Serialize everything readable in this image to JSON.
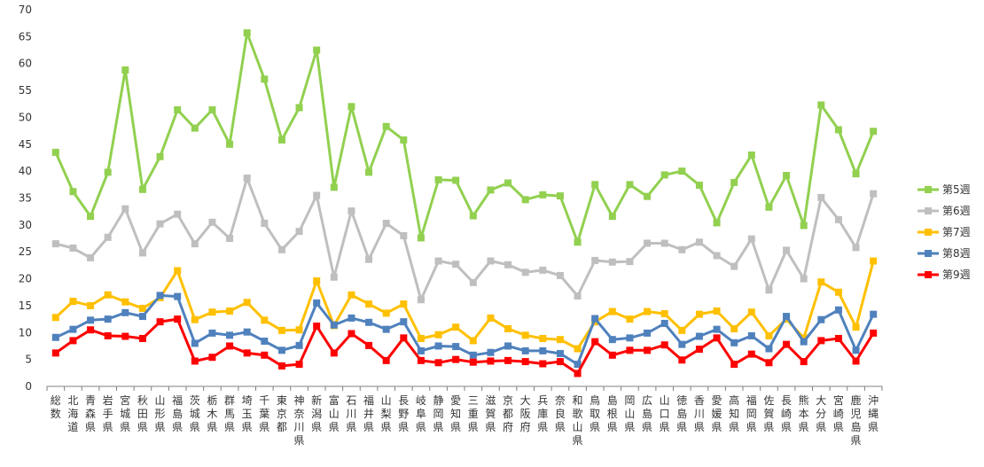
{
  "chart_data": {
    "type": "line",
    "ylim": [
      0,
      70
    ],
    "ytick_step": 5,
    "grid": false,
    "legend_placement": "right",
    "categories": [
      "総数",
      "北海道",
      "青森県",
      "岩手県",
      "宮城県",
      "秋田県",
      "山形県",
      "福島県",
      "茨城県",
      "栃木県",
      "群馬県",
      "埼玉県",
      "千葉県",
      "東京都",
      "神奈川県",
      "新潟県",
      "富山県",
      "石川県",
      "福井県",
      "山梨県",
      "長野県",
      "岐阜県",
      "静岡県",
      "愛知県",
      "三重県",
      "滋賀県",
      "京都府",
      "大阪府",
      "兵庫県",
      "奈良県",
      "和歌山県",
      "鳥取県",
      "島根県",
      "岡山県",
      "広島県",
      "山口県",
      "徳島県",
      "香川県",
      "愛媛県",
      "高知県",
      "福岡県",
      "佐賀県",
      "長崎県",
      "熊本県",
      "大分県",
      "宮崎県",
      "鹿児島県",
      "沖縄県"
    ],
    "series": [
      {
        "name": "第5週",
        "color": "#92d050",
        "marker": "square",
        "values": [
          43.5,
          36.2,
          31.6,
          39.8,
          58.8,
          36.6,
          42.7,
          51.4,
          48,
          51.4,
          45,
          65.7,
          57.1,
          45.8,
          51.8,
          62.5,
          37,
          52,
          39.8,
          48.3,
          45.8,
          27.6,
          38.4,
          38.3,
          31.7,
          36.5,
          37.8,
          34.7,
          35.6,
          35.4,
          26.8,
          37.5,
          31.6,
          37.5,
          35.3,
          39.3,
          40,
          37.4,
          30.4,
          37.9,
          43,
          33.3,
          39.2,
          29.9,
          52.3,
          47.7,
          39.5,
          47.4
        ]
      },
      {
        "name": "第6週",
        "color": "#bfbfbf",
        "marker": "square",
        "values": [
          26.5,
          25.7,
          23.9,
          27.7,
          33,
          24.8,
          30.2,
          32,
          26.5,
          30.5,
          27.5,
          38.7,
          30.3,
          25.4,
          28.8,
          35.5,
          20.3,
          32.6,
          23.6,
          30.3,
          28,
          16.1,
          23.3,
          22.7,
          19.3,
          23.3,
          22.6,
          21.2,
          21.6,
          20.6,
          16.8,
          23.4,
          23.1,
          23.2,
          26.6,
          26.6,
          25.4,
          26.8,
          24.3,
          22.3,
          27.4,
          17.9,
          25.3,
          20,
          35.1,
          31,
          25.8,
          35.8
        ]
      },
      {
        "name": "第7週",
        "color": "#ffc000",
        "marker": "square",
        "values": [
          12.8,
          15.8,
          15,
          17,
          15.7,
          14.5,
          16.5,
          21.5,
          12.4,
          13.8,
          14,
          15.6,
          12.3,
          10.4,
          10.5,
          19.6,
          11.3,
          17,
          15.3,
          13.6,
          15.3,
          8.9,
          9.6,
          11,
          8.5,
          12.7,
          10.7,
          9.5,
          8.9,
          8.7,
          7,
          12,
          13.9,
          12.5,
          13.9,
          13.5,
          10.4,
          13.4,
          14,
          10.7,
          13.8,
          9.4,
          12.5,
          9,
          19.4,
          17.5,
          11,
          23.3
        ]
      },
      {
        "name": "第8週",
        "color": "#4f81bd",
        "marker": "square",
        "values": [
          9.1,
          10.6,
          12.3,
          12.5,
          13.7,
          13,
          16.9,
          16.7,
          8,
          9.9,
          9.5,
          10.1,
          8.4,
          6.7,
          7.6,
          15.5,
          11.4,
          12.7,
          11.9,
          10.6,
          12,
          6.6,
          7.5,
          7.4,
          5.8,
          6.3,
          7.5,
          6.6,
          6.6,
          6.1,
          4.1,
          12.6,
          8.7,
          9,
          9.9,
          11.7,
          7.8,
          9.3,
          10.6,
          8.1,
          9.4,
          7,
          13,
          8.3,
          12.4,
          14.2,
          6.7,
          13.4
        ]
      },
      {
        "name": "第9週",
        "color": "#ff0000",
        "marker": "square",
        "values": [
          6.2,
          8.5,
          10.5,
          9.4,
          9.3,
          8.9,
          12,
          12.5,
          4.7,
          5.4,
          7.5,
          6.2,
          5.8,
          3.8,
          4.1,
          11.2,
          6.2,
          9.8,
          7.6,
          4.8,
          9,
          4.8,
          4.4,
          5,
          4.5,
          4.7,
          4.8,
          4.6,
          4.2,
          4.6,
          2.4,
          8.3,
          5.8,
          6.7,
          6.7,
          7.7,
          4.9,
          6.9,
          9,
          4.1,
          6,
          4.4,
          7.8,
          4.6,
          8.5,
          8.9,
          4.7,
          9.9
        ]
      }
    ]
  }
}
